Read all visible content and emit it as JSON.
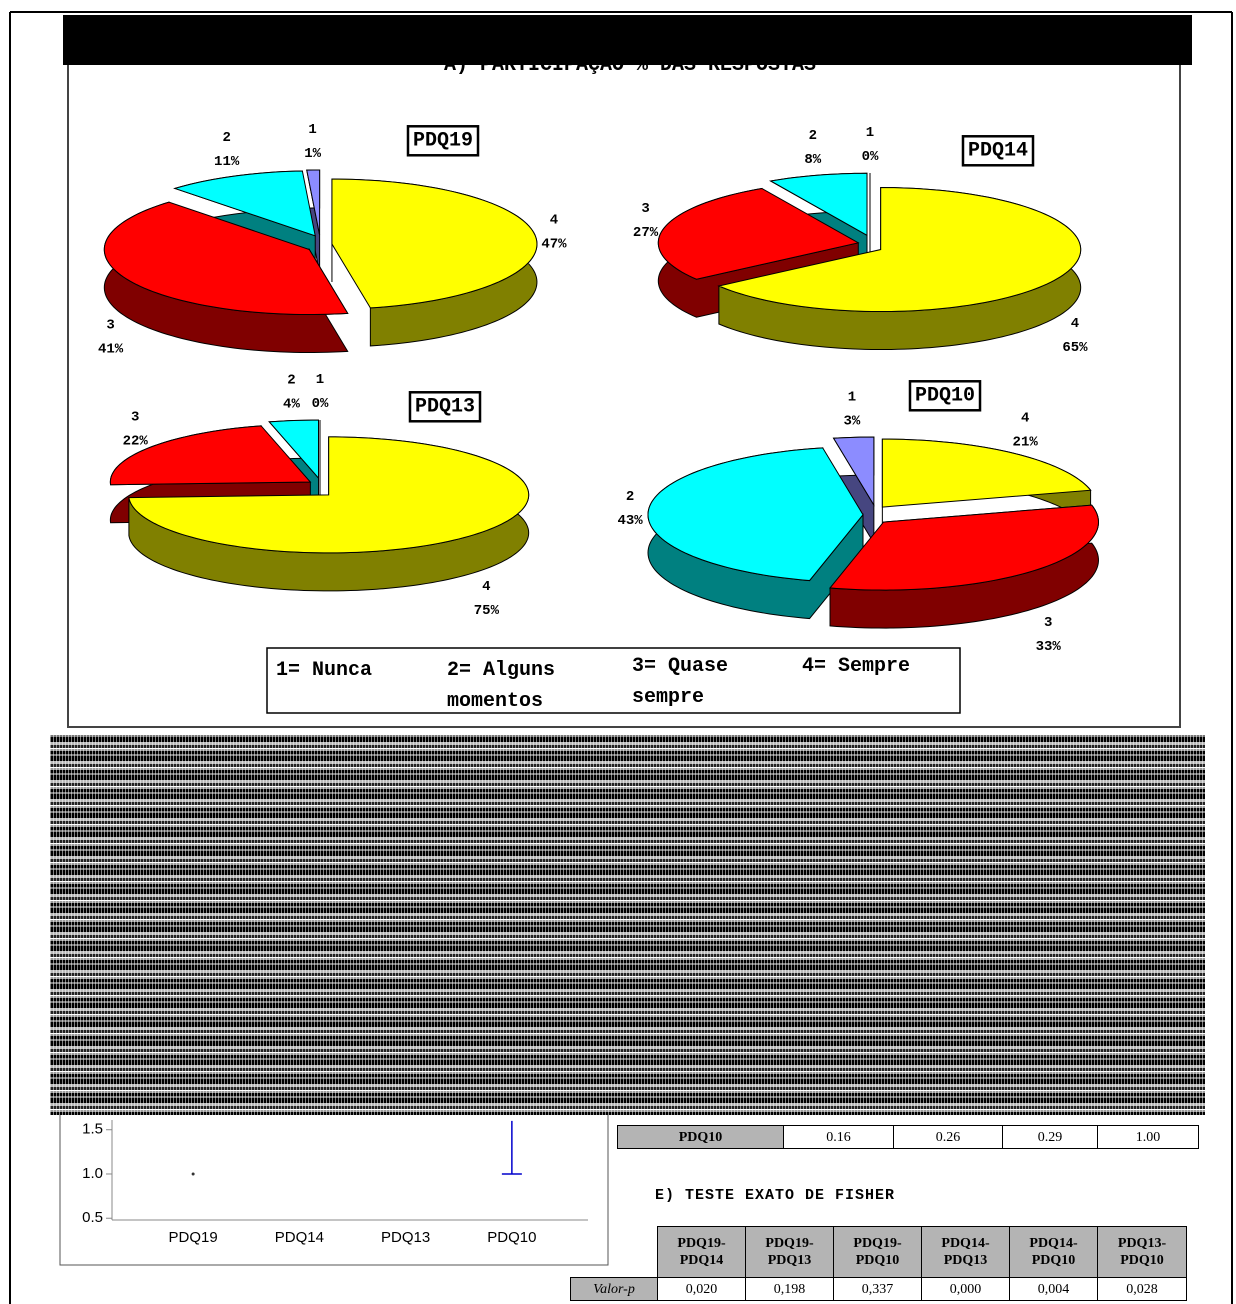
{
  "section_title": "A) PARTICIPAÇÃO % DAS RESPOSTAS",
  "chart_data": [
    {
      "type": "pie",
      "title": "PDQ19",
      "categories": [
        "1",
        "2",
        "3",
        "4"
      ],
      "values": [
        1,
        11,
        41,
        47
      ],
      "value_labels": [
        "1%",
        "11%",
        "41%",
        "47%"
      ],
      "colors": [
        "#8c8cff",
        "#00ffff",
        "#ff0000",
        "#ffff00"
      ]
    },
    {
      "type": "pie",
      "title": "PDQ14",
      "categories": [
        "1",
        "2",
        "3",
        "4"
      ],
      "values": [
        0,
        8,
        27,
        65
      ],
      "value_labels": [
        "0%",
        "8%",
        "27%",
        "65%"
      ],
      "colors": [
        "#8c8cff",
        "#00ffff",
        "#ff0000",
        "#ffff00"
      ]
    },
    {
      "type": "pie",
      "title": "PDQ13",
      "categories": [
        "1",
        "2",
        "3",
        "4"
      ],
      "values": [
        0,
        4,
        22,
        75
      ],
      "value_labels": [
        "0%",
        "4%",
        "22%",
        "75%"
      ],
      "colors": [
        "#8c8cff",
        "#00ffff",
        "#ff0000",
        "#ffff00"
      ]
    },
    {
      "type": "pie",
      "title": "PDQ10",
      "categories": [
        "1",
        "2",
        "3",
        "4"
      ],
      "values": [
        3,
        43,
        33,
        21
      ],
      "value_labels": [
        "3%",
        "43%",
        "33%",
        "21%"
      ],
      "colors": [
        "#8c8cff",
        "#00ffff",
        "#ff0000",
        "#ffff00"
      ]
    },
    {
      "type": "errorbar",
      "categories": [
        "PDQ19",
        "PDQ14",
        "PDQ13",
        "PDQ10"
      ],
      "values": [
        1.0,
        null,
        null,
        null
      ],
      "low": [
        null,
        null,
        null,
        1.0
      ],
      "high": [
        null,
        null,
        null,
        1.6
      ],
      "color": "#0000cc",
      "ylim": [
        0.48,
        1.61
      ],
      "yticks": [
        {
          "value": 0.5,
          "label": "0.5"
        },
        {
          "value": 1.0,
          "label": "1.0"
        },
        {
          "value": 1.5,
          "label": "1.5"
        }
      ]
    }
  ],
  "legend": [
    "1= Nunca",
    "2= Alguns momentos",
    "3= Quase sempre",
    "4= Sempre"
  ],
  "corr_row": [
    "PDQ10",
    "0.16",
    "0.26",
    "0.29",
    "1.00"
  ],
  "fisher": {
    "title": "E) TESTE EXATO DE FISHER",
    "headers": [
      [
        "PDQ19-",
        "PDQ14"
      ],
      [
        "PDQ19-",
        "PDQ13"
      ],
      [
        "PDQ19-",
        "PDQ10"
      ],
      [
        "PDQ14-",
        "PDQ13"
      ],
      [
        "PDQ14-",
        "PDQ10"
      ],
      [
        "PDQ13-",
        "PDQ10"
      ]
    ],
    "row_label": "Valor-p",
    "values": [
      "0,020",
      "0,198",
      "0,337",
      "0,000",
      "0,004",
      "0,028"
    ]
  }
}
